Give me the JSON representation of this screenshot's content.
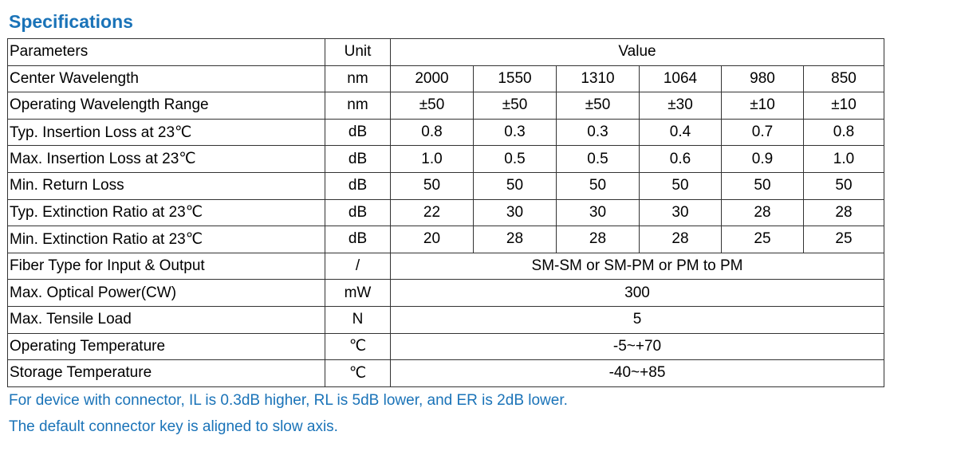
{
  "title": "Specifications",
  "colors": {
    "accent": "#1a73b8",
    "border": "#333333",
    "text": "#000000"
  },
  "table": {
    "header": {
      "parameters": "Parameters",
      "unit": "Unit",
      "value": "Value"
    },
    "rows": [
      {
        "param": "Center Wavelength",
        "unit": "nm",
        "values": [
          "2000",
          "1550",
          "1310",
          "1064",
          "980",
          "850"
        ]
      },
      {
        "param": "Operating Wavelength Range",
        "unit": "nm",
        "values": [
          "±50",
          "±50",
          "±50",
          "±30",
          "±10",
          "±10"
        ]
      },
      {
        "param": "Typ. Insertion Loss at 23℃",
        "unit": "dB",
        "values": [
          "0.8",
          "0.3",
          "0.3",
          "0.4",
          "0.7",
          "0.8"
        ]
      },
      {
        "param": "Max. Insertion Loss at 23℃",
        "unit": "dB",
        "values": [
          "1.0",
          "0.5",
          "0.5",
          "0.6",
          "0.9",
          "1.0"
        ]
      },
      {
        "param": "Min. Return Loss",
        "unit": "dB",
        "values": [
          "50",
          "50",
          "50",
          "50",
          "50",
          "50"
        ]
      },
      {
        "param": "Typ. Extinction Ratio at 23℃",
        "unit": "dB",
        "values": [
          "22",
          "30",
          "30",
          "30",
          "28",
          "28"
        ]
      },
      {
        "param": "Min. Extinction Ratio at 23℃",
        "unit": "dB",
        "values": [
          "20",
          "28",
          "28",
          "28",
          "25",
          "25"
        ]
      },
      {
        "param": "Fiber Type for Input & Output",
        "unit": "/",
        "value": "SM-SM or SM-PM or PM to PM"
      },
      {
        "param": "Max. Optical Power(CW)",
        "unit": "mW",
        "value": "300"
      },
      {
        "param": "Max. Tensile Load",
        "unit": "N",
        "value": "5"
      },
      {
        "param": "Operating Temperature",
        "unit": "℃",
        "value": "-5~+70"
      },
      {
        "param": "Storage Temperature",
        "unit": "℃",
        "value": "-40~+85"
      }
    ]
  },
  "notes": [
    "For device with connector, IL is 0.3dB higher, RL is 5dB lower, and ER is 2dB lower.",
    "The default connector key is aligned to slow axis."
  ]
}
